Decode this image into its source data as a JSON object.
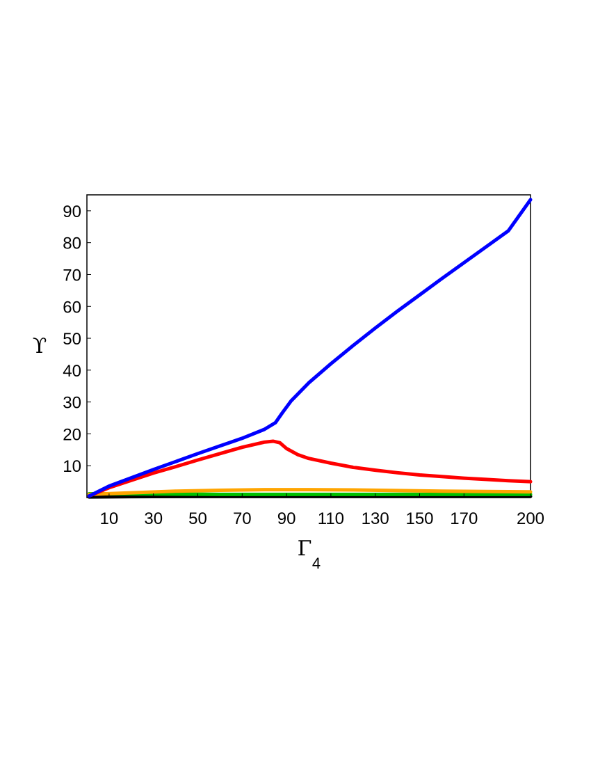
{
  "chart_data": {
    "type": "line",
    "xlabel": "Γ",
    "xlabel_subscript": "4",
    "ylabel": "ϒ",
    "xlim": [
      0,
      200
    ],
    "ylim": [
      0,
      95
    ],
    "x_ticks": [
      10,
      30,
      50,
      70,
      90,
      110,
      130,
      150,
      170,
      200
    ],
    "y_ticks": [
      10,
      20,
      30,
      40,
      50,
      60,
      70,
      80,
      90
    ],
    "grid": false,
    "legend": "none",
    "series": [
      {
        "color": "#0000ff",
        "x": [
          1,
          10,
          20,
          30,
          40,
          50,
          60,
          70,
          80,
          85,
          88,
          92,
          100,
          110,
          120,
          130,
          140,
          150,
          160,
          170,
          180,
          190,
          200
        ],
        "y": [
          0.5,
          3.6,
          6.2,
          8.8,
          11.3,
          13.8,
          16.2,
          18.6,
          21.4,
          23.5,
          26.5,
          30.3,
          36.0,
          42.0,
          47.7,
          53.2,
          58.5,
          63.6,
          68.7,
          73.7,
          78.7,
          83.7,
          93.5
        ]
      },
      {
        "color": "#ff0000",
        "x": [
          1,
          10,
          20,
          30,
          40,
          50,
          60,
          70,
          80,
          84,
          87,
          90,
          95,
          100,
          110,
          120,
          130,
          140,
          150,
          160,
          170,
          180,
          190,
          200
        ],
        "y": [
          0.5,
          3.1,
          5.4,
          7.7,
          9.7,
          11.8,
          13.8,
          15.8,
          17.4,
          17.7,
          17.2,
          15.4,
          13.5,
          12.3,
          10.8,
          9.5,
          8.6,
          7.8,
          7.1,
          6.6,
          6.1,
          5.7,
          5.3,
          5.0
        ]
      },
      {
        "color": "#ffa500",
        "x": [
          1,
          20,
          40,
          60,
          80,
          100,
          120,
          140,
          160,
          180,
          200
        ],
        "y": [
          1.0,
          1.5,
          2.0,
          2.3,
          2.5,
          2.5,
          2.4,
          2.2,
          2.0,
          1.9,
          1.8
        ]
      },
      {
        "color": "#00c000",
        "x": [
          1,
          20,
          40,
          60,
          80,
          100,
          120,
          140,
          160,
          180,
          200
        ],
        "y": [
          1.2,
          1.2,
          1.1,
          1.0,
          1.0,
          1.0,
          1.0,
          1.0,
          1.0,
          1.0,
          1.0
        ]
      },
      {
        "color": "#000000",
        "x": [
          1,
          20,
          40,
          60,
          80,
          100,
          120,
          140,
          160,
          180,
          200
        ],
        "y": [
          0.2,
          0.3,
          0.35,
          0.4,
          0.4,
          0.4,
          0.4,
          0.4,
          0.4,
          0.4,
          0.4
        ]
      }
    ]
  }
}
